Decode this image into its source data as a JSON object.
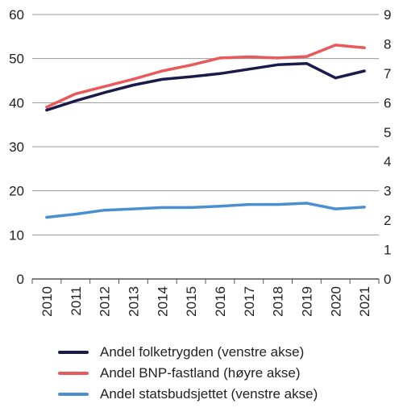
{
  "chart_data": {
    "type": "line",
    "x": [
      "2010",
      "2011",
      "2012",
      "2013",
      "2014",
      "2015",
      "2016",
      "2017",
      "2018",
      "2019",
      "2020",
      "2021"
    ],
    "left_axis": {
      "ylim": [
        0,
        60
      ],
      "ticks": [
        "0",
        "10",
        "20",
        "30",
        "40",
        "50",
        "60"
      ]
    },
    "right_axis": {
      "ylim": [
        0,
        9
      ],
      "ticks": [
        "0",
        "1",
        "2",
        "3",
        "4",
        "5",
        "6",
        "7",
        "8",
        "9"
      ]
    },
    "grid": true,
    "legend_position": "bottom",
    "series": [
      {
        "name": "Andel folketrygden (venstre akse)",
        "axis": "left",
        "color": "#1b1b4b",
        "values": [
          38.3,
          40.4,
          42.3,
          44.0,
          45.3,
          45.9,
          46.6,
          47.6,
          48.6,
          48.9,
          45.6,
          47.2
        ]
      },
      {
        "name": "Andel BNP-fastland (høyre akse)",
        "axis": "right",
        "color": "#e8595b",
        "values": [
          5.85,
          6.3,
          6.55,
          6.8,
          7.08,
          7.28,
          7.52,
          7.56,
          7.52,
          7.57,
          7.96,
          7.87
        ]
      },
      {
        "name": "Andel statsbudsjettet (venstre akse)",
        "axis": "left",
        "color": "#4a90d0",
        "values": [
          14.0,
          14.7,
          15.6,
          15.9,
          16.2,
          16.2,
          16.5,
          16.9,
          16.9,
          17.2,
          15.9,
          16.3
        ]
      }
    ]
  }
}
